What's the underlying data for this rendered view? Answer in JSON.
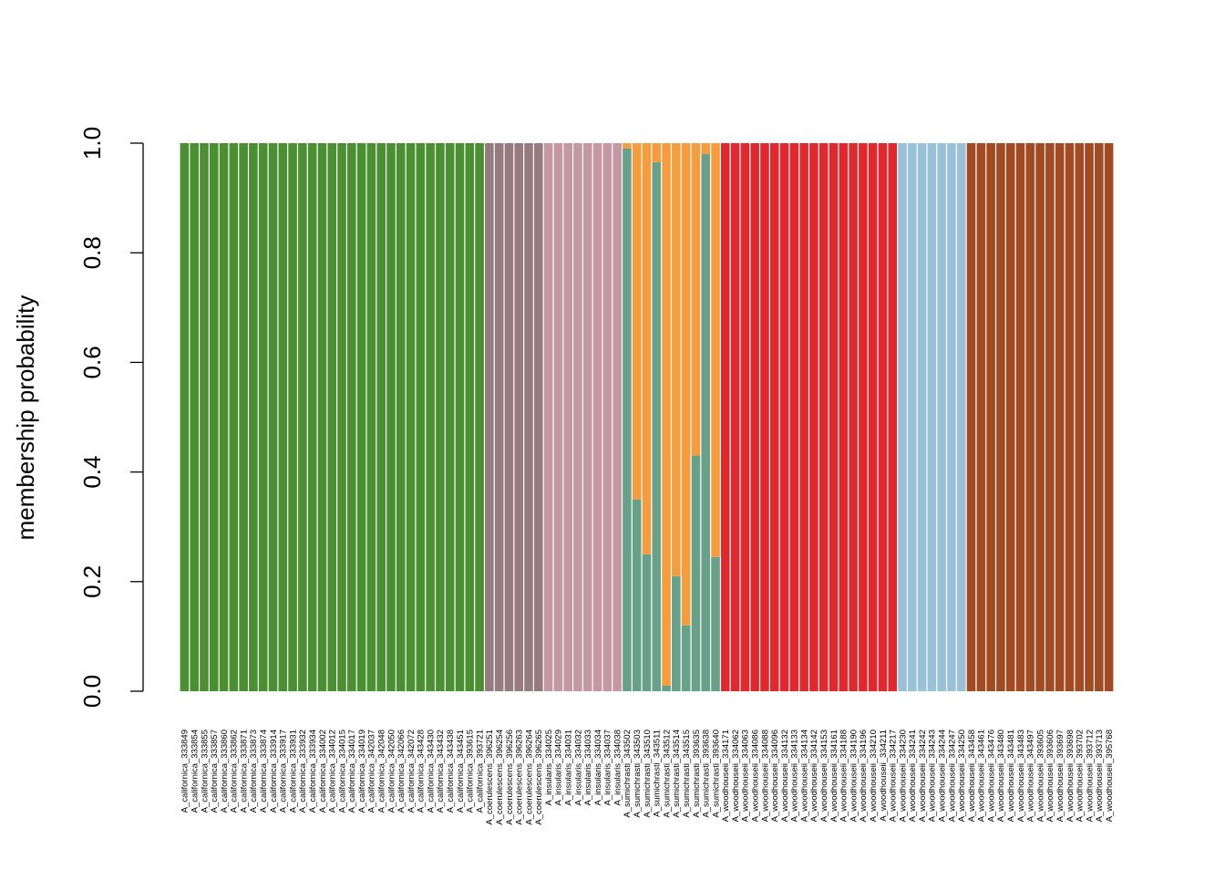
{
  "chart_data": {
    "type": "bar",
    "stacked": true,
    "title": "",
    "xlabel": "",
    "ylabel": "membership probability",
    "ylim": [
      0,
      1
    ],
    "yticks": [
      "0.0",
      "0.2",
      "0.4",
      "0.6",
      "0.8",
      "1.0"
    ],
    "grid": false,
    "legend": "none",
    "colors": {
      "californica": "#4a8f32",
      "coerulescens": "#967b80",
      "insularis": "#c497a4",
      "sumichrasti_a": "#67a18a",
      "sumichrasti_b": "#f59d3e",
      "woodhouseii_red": "#e0292e",
      "woodhouseii_blue": "#99c2d9",
      "woodhouseii_brown": "#a24a22"
    },
    "categories": [
      "A_californica_333849",
      "A_californica_333854",
      "A_californica_333855",
      "A_californica_333857",
      "A_californica_333860",
      "A_californica_333862",
      "A_californica_333871",
      "A_californica_333873",
      "A_californica_333874",
      "A_californica_333914",
      "A_californica_333917",
      "A_californica_333931",
      "A_californica_333932",
      "A_californica_333934",
      "A_californica_334002",
      "A_californica_334012",
      "A_californica_334015",
      "A_californica_334017",
      "A_californica_334019",
      "A_californica_342037",
      "A_californica_342048",
      "A_californica_342050",
      "A_californica_342066",
      "A_californica_342072",
      "A_californica_343428",
      "A_californica_343430",
      "A_californica_343432",
      "A_californica_343438",
      "A_californica_343451",
      "A_californica_393615",
      "A_californica_393721",
      "A_coerulescens_396251",
      "A_coerulescens_396254",
      "A_coerulescens_396256",
      "A_coerulescens_396263",
      "A_coerulescens_396264",
      "A_coerulescens_396265",
      "A_insularis_334025",
      "A_insularis_334029",
      "A_insularis_334031",
      "A_insularis_334032",
      "A_insularis_334033",
      "A_insularis_334034",
      "A_insularis_334037",
      "A_insularis_334038",
      "A_sumichrasti_343502",
      "A_sumichrasti_343503",
      "A_sumichrasti_343510",
      "A_sumichrasti_343511",
      "A_sumichrasti_343512",
      "A_sumichrasti_343514",
      "A_sumichrasti_343515",
      "A_sumichrasti_393635",
      "A_sumichrasti_393638",
      "A_sumichrasti_393640",
      "A_woodhouseii_334171",
      "A_woodhouseii_334062",
      "A_woodhouseii_334063",
      "A_woodhouseii_334086",
      "A_woodhouseii_334088",
      "A_woodhouseii_334096",
      "A_woodhouseii_334132",
      "A_woodhouseii_334133",
      "A_woodhouseii_334134",
      "A_woodhouseii_334142",
      "A_woodhouseii_334153",
      "A_woodhouseii_334161",
      "A_woodhouseii_334188",
      "A_woodhouseii_334190",
      "A_woodhouseii_334196",
      "A_woodhouseii_334210",
      "A_woodhouseii_334211",
      "A_woodhouseii_334217",
      "A_woodhouseii_334230",
      "A_woodhouseii_334241",
      "A_woodhouseii_334242",
      "A_woodhouseii_334243",
      "A_woodhouseii_334244",
      "A_woodhouseii_334247",
      "A_woodhouseii_334250",
      "A_woodhouseii_343458",
      "A_woodhouseii_343461",
      "A_woodhouseii_343476",
      "A_woodhouseii_343480",
      "A_woodhouseii_343481",
      "A_woodhouseii_343483",
      "A_woodhouseii_343497",
      "A_woodhouseii_393605",
      "A_woodhouseii_393606",
      "A_woodhouseii_393697",
      "A_woodhouseii_393698",
      "A_woodhouseii_393702",
      "A_woodhouseii_393712",
      "A_woodhouseii_393713",
      "A_woodhouseii_395768"
    ],
    "series": [
      {
        "key": "californica",
        "values": [
          1,
          1,
          1,
          1,
          1,
          1,
          1,
          1,
          1,
          1,
          1,
          1,
          1,
          1,
          1,
          1,
          1,
          1,
          1,
          1,
          1,
          1,
          1,
          1,
          1,
          1,
          1,
          1,
          1,
          1,
          1,
          0,
          0,
          0,
          0,
          0,
          0,
          0,
          0,
          0,
          0,
          0,
          0,
          0,
          0,
          0,
          0,
          0,
          0,
          0,
          0,
          0,
          0,
          0,
          0,
          0,
          0,
          0,
          0,
          0,
          0,
          0,
          0,
          0,
          0,
          0,
          0,
          0,
          0,
          0,
          0,
          0,
          0,
          0,
          0,
          0,
          0,
          0,
          0,
          0,
          0,
          0,
          0,
          0,
          0,
          0,
          0,
          0,
          0,
          0,
          0,
          0,
          0,
          0,
          0
        ]
      },
      {
        "key": "coerulescens",
        "values": [
          0,
          0,
          0,
          0,
          0,
          0,
          0,
          0,
          0,
          0,
          0,
          0,
          0,
          0,
          0,
          0,
          0,
          0,
          0,
          0,
          0,
          0,
          0,
          0,
          0,
          0,
          0,
          0,
          0,
          0,
          0,
          1,
          1,
          1,
          1,
          1,
          1,
          0,
          0,
          0,
          0,
          0,
          0,
          0,
          0,
          0,
          0,
          0,
          0,
          0,
          0,
          0,
          0,
          0,
          0,
          0,
          0,
          0,
          0,
          0,
          0,
          0,
          0,
          0,
          0,
          0,
          0,
          0,
          0,
          0,
          0,
          0,
          0,
          0,
          0,
          0,
          0,
          0,
          0,
          0,
          0,
          0,
          0,
          0,
          0,
          0,
          0,
          0,
          0,
          0,
          0,
          0,
          0,
          0,
          0
        ]
      },
      {
        "key": "insularis",
        "values": [
          0,
          0,
          0,
          0,
          0,
          0,
          0,
          0,
          0,
          0,
          0,
          0,
          0,
          0,
          0,
          0,
          0,
          0,
          0,
          0,
          0,
          0,
          0,
          0,
          0,
          0,
          0,
          0,
          0,
          0,
          0,
          0,
          0,
          0,
          0,
          0,
          0,
          1,
          1,
          1,
          1,
          1,
          1,
          1,
          1,
          0,
          0,
          0,
          0,
          0,
          0,
          0,
          0,
          0,
          0,
          0,
          0,
          0,
          0,
          0,
          0,
          0,
          0,
          0,
          0,
          0,
          0,
          0,
          0,
          0,
          0,
          0,
          0,
          0,
          0,
          0,
          0,
          0,
          0,
          0,
          0,
          0,
          0,
          0,
          0,
          0,
          0,
          0,
          0,
          0,
          0,
          0,
          0,
          0,
          0
        ]
      },
      {
        "key": "sumichrasti_a",
        "values": [
          0,
          0,
          0,
          0,
          0,
          0,
          0,
          0,
          0,
          0,
          0,
          0,
          0,
          0,
          0,
          0,
          0,
          0,
          0,
          0,
          0,
          0,
          0,
          0,
          0,
          0,
          0,
          0,
          0,
          0,
          0,
          0,
          0,
          0,
          0,
          0,
          0,
          0,
          0,
          0,
          0,
          0,
          0,
          0,
          0,
          0.99,
          0.35,
          0.25,
          0.965,
          0.01,
          0.21,
          0.12,
          0.43,
          0.98,
          0.245,
          0,
          0,
          0,
          0,
          0,
          0,
          0,
          0,
          0,
          0,
          0,
          0,
          0,
          0,
          0,
          0,
          0,
          0,
          0,
          0,
          0,
          0,
          0,
          0,
          0,
          0,
          0,
          0,
          0,
          0,
          0,
          0,
          0,
          0,
          0,
          0,
          0,
          0,
          0,
          0
        ]
      },
      {
        "key": "sumichrasti_b",
        "values": [
          0,
          0,
          0,
          0,
          0,
          0,
          0,
          0,
          0,
          0,
          0,
          0,
          0,
          0,
          0,
          0,
          0,
          0,
          0,
          0,
          0,
          0,
          0,
          0,
          0,
          0,
          0,
          0,
          0,
          0,
          0,
          0,
          0,
          0,
          0,
          0,
          0,
          0,
          0,
          0,
          0,
          0,
          0,
          0,
          0,
          0.01,
          0.65,
          0.75,
          0.035,
          0.99,
          0.79,
          0.88,
          0.57,
          0.02,
          0.755,
          0,
          0,
          0,
          0,
          0,
          0,
          0,
          0,
          0,
          0,
          0,
          0,
          0,
          0,
          0,
          0,
          0,
          0,
          0,
          0,
          0,
          0,
          0,
          0,
          0,
          0,
          0,
          0,
          0,
          0,
          0,
          0,
          0,
          0,
          0,
          0,
          0,
          0,
          0,
          0
        ]
      },
      {
        "key": "woodhouseii_red",
        "values": [
          0,
          0,
          0,
          0,
          0,
          0,
          0,
          0,
          0,
          0,
          0,
          0,
          0,
          0,
          0,
          0,
          0,
          0,
          0,
          0,
          0,
          0,
          0,
          0,
          0,
          0,
          0,
          0,
          0,
          0,
          0,
          0,
          0,
          0,
          0,
          0,
          0,
          0,
          0,
          0,
          0,
          0,
          0,
          0,
          0,
          0,
          0,
          0,
          0,
          0,
          0,
          0,
          0,
          0,
          0,
          1,
          1,
          1,
          1,
          1,
          1,
          1,
          1,
          1,
          1,
          1,
          1,
          1,
          1,
          1,
          1,
          1,
          1,
          0,
          0,
          0,
          0,
          0,
          0,
          0,
          0,
          0,
          0,
          0,
          0,
          0,
          0,
          0,
          0,
          0,
          0,
          0,
          0,
          0,
          0
        ]
      },
      {
        "key": "woodhouseii_blue",
        "values": [
          0,
          0,
          0,
          0,
          0,
          0,
          0,
          0,
          0,
          0,
          0,
          0,
          0,
          0,
          0,
          0,
          0,
          0,
          0,
          0,
          0,
          0,
          0,
          0,
          0,
          0,
          0,
          0,
          0,
          0,
          0,
          0,
          0,
          0,
          0,
          0,
          0,
          0,
          0,
          0,
          0,
          0,
          0,
          0,
          0,
          0,
          0,
          0,
          0,
          0,
          0,
          0,
          0,
          0,
          0,
          0,
          0,
          0,
          0,
          0,
          0,
          0,
          0,
          0,
          0,
          0,
          0,
          0,
          0,
          0,
          0,
          0,
          0,
          1,
          1,
          1,
          1,
          1,
          1,
          1,
          0,
          0,
          0,
          0,
          0,
          0,
          0,
          0,
          0,
          0,
          0,
          0,
          0,
          0,
          0
        ]
      },
      {
        "key": "woodhouseii_brown",
        "values": [
          0,
          0,
          0,
          0,
          0,
          0,
          0,
          0,
          0,
          0,
          0,
          0,
          0,
          0,
          0,
          0,
          0,
          0,
          0,
          0,
          0,
          0,
          0,
          0,
          0,
          0,
          0,
          0,
          0,
          0,
          0,
          0,
          0,
          0,
          0,
          0,
          0,
          0,
          0,
          0,
          0,
          0,
          0,
          0,
          0,
          0,
          0,
          0,
          0,
          0,
          0,
          0,
          0,
          0,
          0,
          0,
          0,
          0,
          0,
          0,
          0,
          0,
          0,
          0,
          0,
          0,
          0,
          0,
          0,
          0,
          0,
          0,
          0,
          0,
          0,
          0,
          0,
          0,
          0,
          0,
          1,
          1,
          1,
          1,
          1,
          1,
          1,
          1,
          1,
          1,
          1,
          1,
          1,
          1,
          1
        ]
      }
    ]
  }
}
